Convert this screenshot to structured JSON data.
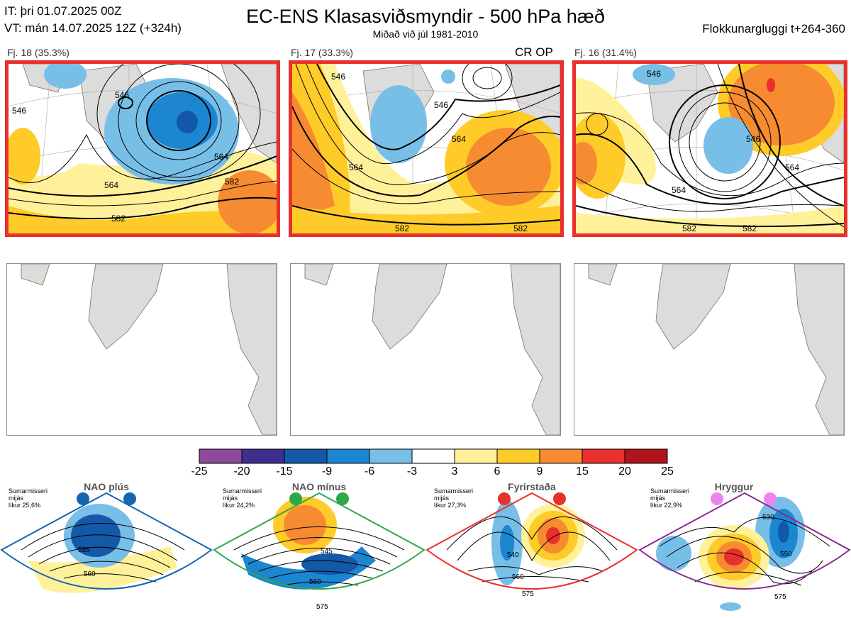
{
  "header": {
    "init_time": "IT: þri 01.07.2025 00Z",
    "valid_time": "VT: mán 14.07.2025 12Z  (+324h)",
    "title": "EC-ENS Klasasviðsmyndir - 500 hPa hæð",
    "subtitle": "Miðað við júl 1981-2010",
    "window": "Flokkunargluggi t+264-360"
  },
  "clusters": [
    {
      "label": "Fj. 18 (35.3%)",
      "contours": [
        "546",
        "546",
        "564",
        "564",
        "582",
        "582"
      ]
    },
    {
      "label": "Fj. 17 (33.3%)",
      "badge": "CR OP",
      "contours": [
        "546",
        "546",
        "564",
        "564",
        "582",
        "582"
      ]
    },
    {
      "label": "Fj. 16 (31.4%)",
      "contours": [
        "546",
        "546",
        "564",
        "564",
        "582",
        "582"
      ]
    }
  ],
  "colorbar": {
    "ticks": [
      "-25",
      "-20",
      "-15",
      "-9",
      "-6",
      "-3",
      "3",
      "6",
      "9",
      "15",
      "20",
      "25"
    ],
    "colors": [
      "#8b4a9c",
      "#3e2f8f",
      "#1458a8",
      "#1c86d1",
      "#78bfe8",
      "#ffffff",
      "#fff19a",
      "#ffcb29",
      "#f68b32",
      "#e8302c",
      "#b0141b"
    ]
  },
  "regimes": [
    {
      "name": "NAO plús",
      "note": [
        "Sumarmisseri",
        "mijás",
        "líkur 25,6%"
      ],
      "border": "#1565b0",
      "dot": "#1565b0",
      "contours": [
        "535",
        "560"
      ]
    },
    {
      "name": "NAO mínus",
      "note": [
        "Sumarmisseri",
        "mijás",
        "líkur 24,2%"
      ],
      "border": "#2ea84a",
      "dot": "#2ea84a",
      "contours": [
        "545",
        "560",
        "575"
      ]
    },
    {
      "name": "Fyrirstaða",
      "note": [
        "Sumarmisseri",
        "mijás",
        "líkur 27,3%"
      ],
      "border": "#e8302c",
      "dot": "#e8302c",
      "contours": [
        "540",
        "560",
        "575"
      ]
    },
    {
      "name": "Hryggur",
      "note": [
        "Sumarmisseri",
        "mijás",
        "líkur 22,9%"
      ],
      "border": "#8b2a90",
      "dot": "#ee82ee",
      "contours": [
        "530",
        "550",
        "575"
      ]
    }
  ]
}
